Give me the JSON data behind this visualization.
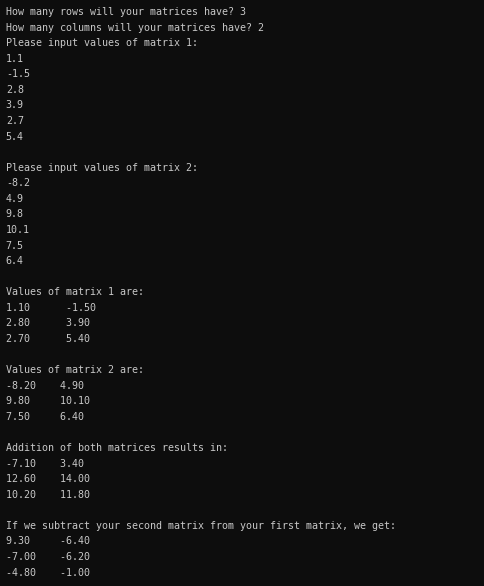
{
  "background_color": "#0d0d0d",
  "text_color": "#c8c8c8",
  "font_family": "monospace",
  "font_size": 7.2,
  "lines": [
    "How many rows will your matrices have? 3",
    "How many columns will your matrices have? 2",
    "Please input values of matrix 1:",
    "1.1",
    "-1.5",
    "2.8",
    "3.9",
    "2.7",
    "5.4",
    "",
    "Please input values of matrix 2:",
    "-8.2",
    "4.9",
    "9.8",
    "10.1",
    "7.5",
    "6.4",
    "",
    "Values of matrix 1 are:",
    "1.10      -1.50",
    "2.80      3.90",
    "2.70      5.40",
    "",
    "Values of matrix 2 are:",
    "-8.20    4.90",
    "9.80     10.10",
    "7.50     6.40",
    "",
    "Addition of both matrices results in:",
    "-7.10    3.40",
    "12.60    14.00",
    "10.20    11.80",
    "",
    "If we subtract your second matrix from your first matrix, we get:",
    "9.30     -6.40",
    "-7.00    -6.20",
    "-4.80    -1.00"
  ]
}
